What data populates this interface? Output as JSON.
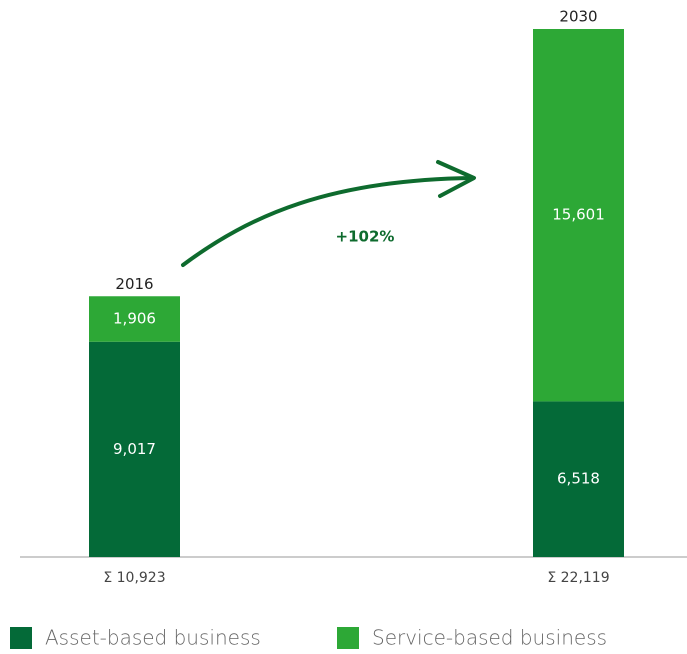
{
  "chart_data": {
    "type": "stacked_bar",
    "categories": [
      "2016",
      "2030"
    ],
    "series": [
      {
        "name": "Asset-based business",
        "color": "#046a38",
        "values": [
          9017,
          6518
        ],
        "value_labels": [
          "9,017",
          "6,518"
        ]
      },
      {
        "name": "Service-based business",
        "color": "#2da836",
        "values": [
          1906,
          15601
        ],
        "value_labels": [
          "1,906",
          "15,601"
        ]
      }
    ],
    "totals": [
      10923,
      22119
    ],
    "total_labels": [
      "Σ 10,923",
      "Σ 22,119"
    ],
    "annotation": "+102%",
    "annotation_color": "#0e6b2e",
    "legend": "bottom"
  }
}
